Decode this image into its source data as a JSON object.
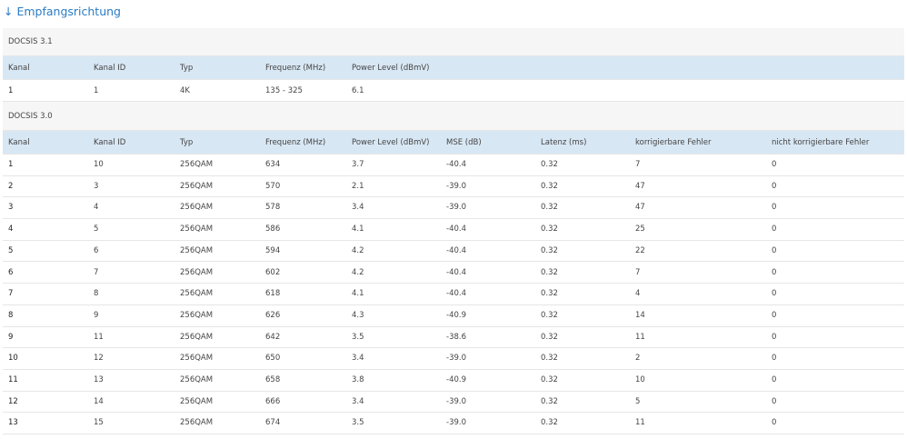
{
  "title": "↓ Empfangsrichtung",
  "sections": [
    {
      "label": "DOCSIS 3.1",
      "columns": [
        "Kanal",
        "Kanal ID",
        "Typ",
        "Frequenz (MHz)",
        "Power Level (dBmV)"
      ],
      "rows": [
        [
          "1",
          "1",
          "4K",
          "135 - 325",
          "6.1"
        ]
      ]
    },
    {
      "label": "DOCSIS 3.0",
      "columns": [
        "Kanal",
        "Kanal ID",
        "Typ",
        "Frequenz (MHz)",
        "Power Level (dBmV)",
        "MSE (dB)",
        "Latenz (ms)",
        "korrigierbare Fehler",
        "nicht korrigierbare Fehler"
      ],
      "rows": [
        [
          "1",
          "10",
          "256QAM",
          "634",
          "3.7",
          "-40.4",
          "0.32",
          "7",
          "0"
        ],
        [
          "2",
          "3",
          "256QAM",
          "570",
          "2.1",
          "-39.0",
          "0.32",
          "47",
          "0"
        ],
        [
          "3",
          "4",
          "256QAM",
          "578",
          "3.4",
          "-39.0",
          "0.32",
          "47",
          "0"
        ],
        [
          "4",
          "5",
          "256QAM",
          "586",
          "4.1",
          "-40.4",
          "0.32",
          "25",
          "0"
        ],
        [
          "5",
          "6",
          "256QAM",
          "594",
          "4.2",
          "-40.4",
          "0.32",
          "22",
          "0"
        ],
        [
          "6",
          "7",
          "256QAM",
          "602",
          "4.2",
          "-40.4",
          "0.32",
          "7",
          "0"
        ],
        [
          "7",
          "8",
          "256QAM",
          "618",
          "4.1",
          "-40.4",
          "0.32",
          "4",
          "0"
        ],
        [
          "8",
          "9",
          "256QAM",
          "626",
          "4.3",
          "-40.9",
          "0.32",
          "14",
          "0"
        ],
        [
          "9",
          "11",
          "256QAM",
          "642",
          "3.5",
          "-38.6",
          "0.32",
          "11",
          "0"
        ],
        [
          "10",
          "12",
          "256QAM",
          "650",
          "3.4",
          "-39.0",
          "0.32",
          "2",
          "0"
        ],
        [
          "11",
          "13",
          "256QAM",
          "658",
          "3.8",
          "-40.9",
          "0.32",
          "10",
          "0"
        ],
        [
          "12",
          "14",
          "256QAM",
          "666",
          "3.4",
          "-39.0",
          "0.32",
          "5",
          "0"
        ],
        [
          "13",
          "15",
          "256QAM",
          "674",
          "3.5",
          "-39.0",
          "0.32",
          "11",
          "0"
        ]
      ]
    }
  ]
}
